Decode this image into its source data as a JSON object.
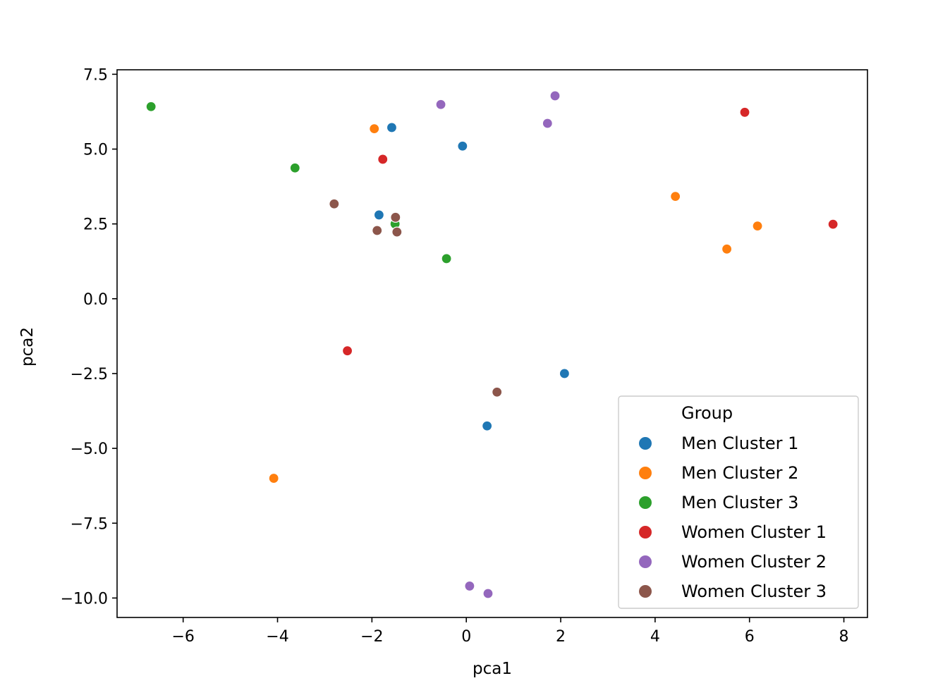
{
  "chart_data": {
    "type": "scatter",
    "title": "",
    "xlabel": "pca1",
    "ylabel": "pca2",
    "xlim": [
      -7.4,
      8.5
    ],
    "ylim": [
      -10.65,
      7.65
    ],
    "xticks": [
      -6,
      -4,
      -2,
      0,
      2,
      4,
      6,
      8
    ],
    "xtick_labels": [
      "−6",
      "−4",
      "−2",
      "0",
      "2",
      "4",
      "6",
      "8"
    ],
    "yticks": [
      7.5,
      5.0,
      2.5,
      0.0,
      -2.5,
      -5.0,
      -7.5,
      -10.0
    ],
    "ytick_labels": [
      "7.5",
      "5.0",
      "2.5",
      "0.0",
      "−2.5",
      "−5.0",
      "−7.5",
      "−10.0"
    ],
    "grid": false,
    "legend": {
      "title": "Group",
      "placement": "lower-right"
    },
    "series": [
      {
        "name": "Men Cluster 1",
        "color": "#1f77b4",
        "points": [
          [
            -1.58,
            5.72
          ],
          [
            -0.08,
            5.1
          ],
          [
            -1.85,
            2.8
          ],
          [
            2.08,
            -2.5
          ],
          [
            0.44,
            -4.25
          ]
        ]
      },
      {
        "name": "Men Cluster 2",
        "color": "#ff7f0e",
        "points": [
          [
            -1.95,
            5.68
          ],
          [
            4.43,
            3.42
          ],
          [
            6.17,
            2.43
          ],
          [
            5.52,
            1.66
          ],
          [
            -4.08,
            -6.0
          ]
        ]
      },
      {
        "name": "Men Cluster 3",
        "color": "#2ca02c",
        "points": [
          [
            -6.68,
            6.42
          ],
          [
            -3.63,
            4.37
          ],
          [
            -1.51,
            2.5
          ],
          [
            -0.42,
            1.34
          ]
        ]
      },
      {
        "name": "Women Cluster 1",
        "color": "#d62728",
        "points": [
          [
            5.9,
            6.23
          ],
          [
            -1.77,
            4.66
          ],
          [
            7.77,
            2.49
          ],
          [
            -2.52,
            -1.74
          ]
        ]
      },
      {
        "name": "Women Cluster 2",
        "color": "#9467bd",
        "points": [
          [
            1.88,
            6.78
          ],
          [
            -0.54,
            6.49
          ],
          [
            1.72,
            5.86
          ],
          [
            0.07,
            -9.6
          ],
          [
            0.46,
            -9.85
          ]
        ]
      },
      {
        "name": "Women Cluster 3",
        "color": "#8c564b",
        "points": [
          [
            -2.8,
            3.17
          ],
          [
            -1.5,
            2.72
          ],
          [
            -1.89,
            2.28
          ],
          [
            -1.47,
            2.23
          ],
          [
            0.65,
            -3.12
          ]
        ]
      }
    ]
  }
}
